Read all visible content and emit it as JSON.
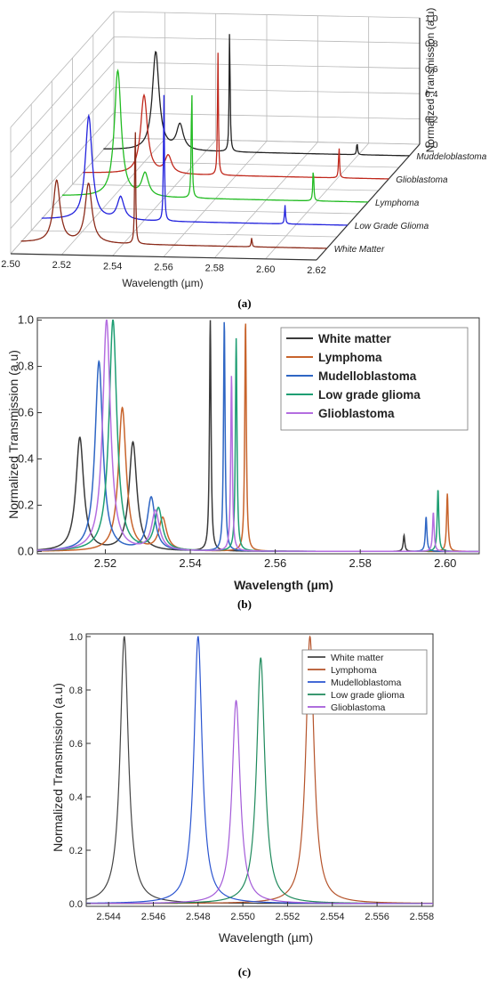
{
  "chart_data": [
    {
      "panel": "(a)",
      "type": "line",
      "projection": "3d",
      "xlabel": "Wavelength (µm)",
      "zlabel": "Normalized Transmission (a.u)",
      "xlim": [
        2.5,
        2.62
      ],
      "zlim": [
        0,
        1.0
      ],
      "x_ticks": [
        "2.50",
        "2.52",
        "2.54",
        "2.56",
        "2.58",
        "2.60",
        "2.62"
      ],
      "z_ticks": [
        "0.0",
        "0.2",
        "0.4",
        "0.6",
        "0.8",
        "1.0"
      ],
      "depth_labels": [
        "White Matter",
        "Low Grade Glioma",
        "Lymphoma",
        "Glioblastoma",
        "Muddeloblastoma"
      ],
      "series": [
        {
          "name": "White Matter",
          "color": "#8b2b1a",
          "peaks": [
            {
              "x": 2.514,
              "y": 0.49
            },
            {
              "x": 2.5265,
              "y": 0.47
            },
            {
              "x": 2.5448,
              "y": 1.0
            },
            {
              "x": 2.5905,
              "y": 0.07
            }
          ]
        },
        {
          "name": "Low Grade Glioma",
          "color": "#2222dd",
          "peaks": [
            {
              "x": 2.5185,
              "y": 0.82
            },
            {
              "x": 2.531,
              "y": 0.18
            },
            {
              "x": 2.548,
              "y": 1.0
            },
            {
              "x": 2.5955,
              "y": 0.15
            }
          ]
        },
        {
          "name": "Lymphoma",
          "color": "#22bb22",
          "peaks": [
            {
              "x": 2.5218,
              "y": 1.0
            },
            {
              "x": 2.5325,
              "y": 0.18
            },
            {
              "x": 2.5508,
              "y": 0.92
            },
            {
              "x": 2.5985,
              "y": 0.27
            }
          ]
        },
        {
          "name": "Glioblastoma",
          "color": "#c0281c",
          "peaks": [
            {
              "x": 2.524,
              "y": 0.62
            },
            {
              "x": 2.5335,
              "y": 0.14
            },
            {
              "x": 2.553,
              "y": 1.0
            },
            {
              "x": 2.6005,
              "y": 0.25
            }
          ]
        },
        {
          "name": "Muddeloblastoma",
          "color": "#222222",
          "peaks": [
            {
              "x": 2.5205,
              "y": 0.78
            },
            {
              "x": 2.53,
              "y": 0.2
            },
            {
              "x": 2.5495,
              "y": 1.0
            },
            {
              "x": 2.5995,
              "y": 0.1
            }
          ]
        }
      ]
    },
    {
      "panel": "(b)",
      "type": "line",
      "xlabel": "Wavelength (µm)",
      "ylabel": "Normalized Transmission (a.u)",
      "xlim": [
        2.504,
        2.608
      ],
      "ylim": [
        -0.01,
        1.01
      ],
      "x_ticks": [
        2.52,
        2.54,
        2.56,
        2.58,
        2.6
      ],
      "y_ticks": [
        0.0,
        0.2,
        0.4,
        0.6,
        0.8,
        1.0
      ],
      "legend": "top-right",
      "series": [
        {
          "name": "White matter",
          "color": "#3a3a3a",
          "peaks": [
            {
              "x": 2.514,
              "y": 0.49
            },
            {
              "x": 2.5265,
              "y": 0.47
            },
            {
              "x": 2.5447,
              "y": 1.0
            },
            {
              "x": 2.5903,
              "y": 0.07
            }
          ]
        },
        {
          "name": "Lymphoma",
          "color": "#c8642c",
          "peaks": [
            {
              "x": 2.524,
              "y": 0.62
            },
            {
              "x": 2.5335,
              "y": 0.14
            },
            {
              "x": 2.553,
              "y": 1.0
            },
            {
              "x": 2.6005,
              "y": 0.25
            }
          ]
        },
        {
          "name": "Mudelloblastoma",
          "color": "#2f66c4",
          "peaks": [
            {
              "x": 2.5185,
              "y": 0.82
            },
            {
              "x": 2.5308,
              "y": 0.23
            },
            {
              "x": 2.548,
              "y": 1.0
            },
            {
              "x": 2.5955,
              "y": 0.15
            }
          ]
        },
        {
          "name": "Low grade glioma",
          "color": "#1f9e73",
          "peaks": [
            {
              "x": 2.5218,
              "y": 1.0
            },
            {
              "x": 2.5325,
              "y": 0.18
            },
            {
              "x": 2.5508,
              "y": 0.92
            },
            {
              "x": 2.5983,
              "y": 0.27
            }
          ]
        },
        {
          "name": "Glioblastoma",
          "color": "#b46ee0",
          "peaks": [
            {
              "x": 2.5203,
              "y": 1.0
            },
            {
              "x": 2.5318,
              "y": 0.17
            },
            {
              "x": 2.5497,
              "y": 0.76
            },
            {
              "x": 2.5972,
              "y": 0.17
            }
          ]
        }
      ]
    },
    {
      "panel": "(c)",
      "type": "line",
      "xlabel": "Wavelength (µm)",
      "ylabel": "Normalized Transmission (a.u)",
      "xlim": [
        2.543,
        2.5585
      ],
      "ylim": [
        -0.01,
        1.01
      ],
      "x_ticks": [
        "2.544",
        "2.546",
        "2.548",
        "2.550",
        "2.552",
        "2.554",
        "2.556",
        "2.558"
      ],
      "y_ticks": [
        "0.0",
        "0.2",
        "0.4",
        "0.6",
        "0.8",
        "1.0"
      ],
      "legend": "top-right",
      "series": [
        {
          "name": "White matter",
          "color": "#444444",
          "peaks": [
            {
              "x": 2.5447,
              "y": 1.0
            }
          ]
        },
        {
          "name": "Lymphoma",
          "color": "#b5532a",
          "peaks": [
            {
              "x": 2.553,
              "y": 1.0
            }
          ]
        },
        {
          "name": "Mudelloblastoma",
          "color": "#2a54d0",
          "peaks": [
            {
              "x": 2.548,
              "y": 1.0
            }
          ]
        },
        {
          "name": "Low grade glioma",
          "color": "#1f8a5c",
          "peaks": [
            {
              "x": 2.5508,
              "y": 0.92
            }
          ]
        },
        {
          "name": "Glioblastoma",
          "color": "#a35ad8",
          "peaks": [
            {
              "x": 2.5497,
              "y": 0.76
            }
          ]
        }
      ]
    }
  ]
}
